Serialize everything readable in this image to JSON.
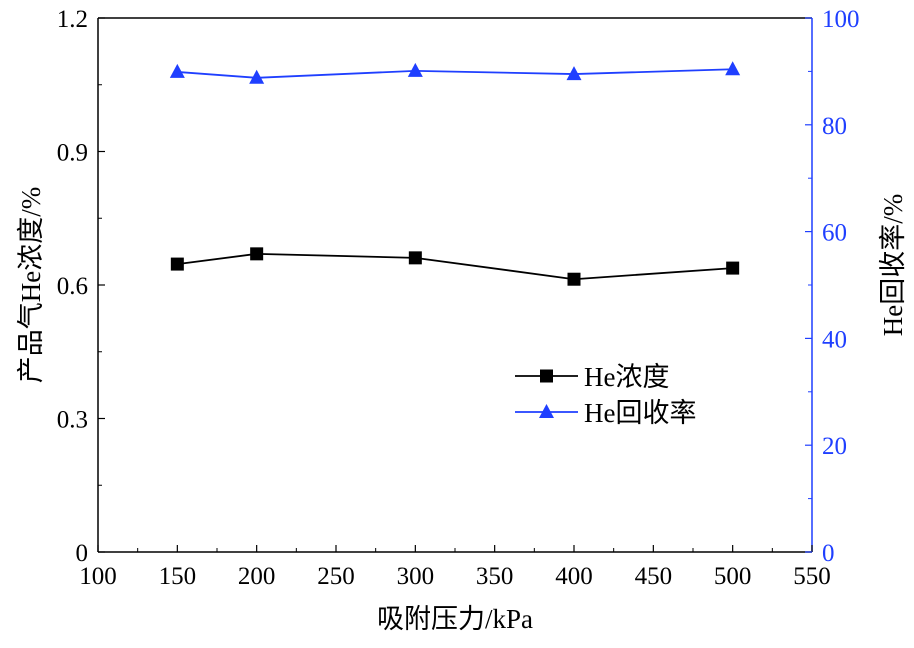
{
  "chart_data": {
    "type": "line",
    "title": "",
    "xlabel": "吸附压力/kPa",
    "ylabel_left": "产品气He浓度/%",
    "ylabel_right": "He回收率/%",
    "xlim": [
      100,
      550
    ],
    "ylim_left": [
      0,
      1.2
    ],
    "ylim_right": [
      0,
      100
    ],
    "x_ticks": [
      "100",
      "150",
      "200",
      "250",
      "300",
      "350",
      "400",
      "450",
      "500",
      "550"
    ],
    "y_left_ticks": [
      "0",
      "0.3",
      "0.6",
      "0.9",
      "1.2"
    ],
    "y_right_ticks": [
      "0",
      "20",
      "40",
      "60",
      "80",
      "100"
    ],
    "x": [
      150,
      200,
      300,
      400,
      500
    ],
    "series": [
      {
        "name": "He浓度",
        "axis": "left",
        "marker": "square",
        "color": "#000000",
        "values": [
          0.647,
          0.67,
          0.661,
          0.613,
          0.638
        ]
      },
      {
        "name": "He回收率",
        "axis": "right",
        "marker": "triangle",
        "color": "#1f3fff",
        "values": [
          89.9,
          88.8,
          90.1,
          89.5,
          90.4
        ]
      }
    ],
    "legend_placement": "center-right",
    "grid": false
  }
}
